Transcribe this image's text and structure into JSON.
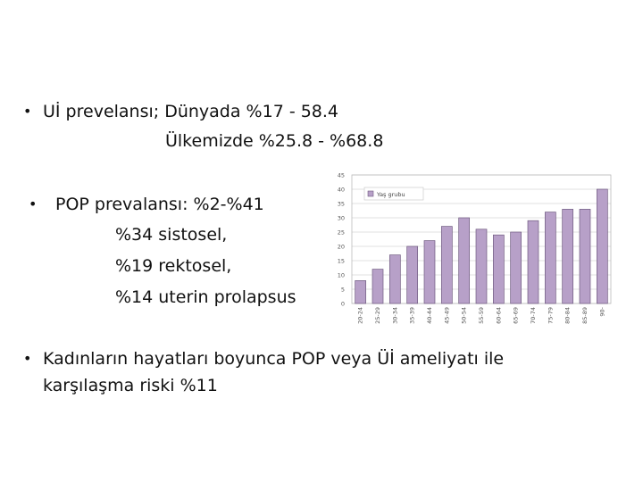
{
  "slide": {
    "bullet_char": "•",
    "point1": {
      "line1": "Uİ prevelansı; Dünyada %17 - 58.4",
      "line2": "Ülkemizde %25.8 -  %68.8"
    },
    "point2": {
      "line1": "POP prevalansı: %2-%41",
      "line2": "%34 sistosel,",
      "line3": "%19 rektosel,",
      "line4": "%14 uterin prolapsus"
    },
    "point3": {
      "line1": "Kadınların hayatları boyunca POP veya Üİ ameliyatı ile",
      "line2": "karşılaşma riski %11"
    }
  },
  "chart_data": {
    "type": "bar",
    "categories": [
      "20-24",
      "25-29",
      "30-34",
      "35-39",
      "40-44",
      "45-49",
      "50-54",
      "55-59",
      "60-64",
      "65-69",
      "70-74",
      "75-79",
      "80-84",
      "85-89",
      "90-"
    ],
    "series": [
      {
        "name": "Yaş grubu",
        "values": [
          8,
          12,
          17,
          20,
          22,
          27,
          30,
          26,
          24,
          25,
          29,
          32,
          33,
          33,
          40
        ],
        "color": "#b7a0c8"
      }
    ],
    "ylim": [
      0,
      45
    ],
    "yticks": [
      "0",
      "5",
      "10",
      "15",
      "20",
      "25",
      "30",
      "35",
      "40",
      "45"
    ],
    "grid": true,
    "legend": "top-left"
  }
}
